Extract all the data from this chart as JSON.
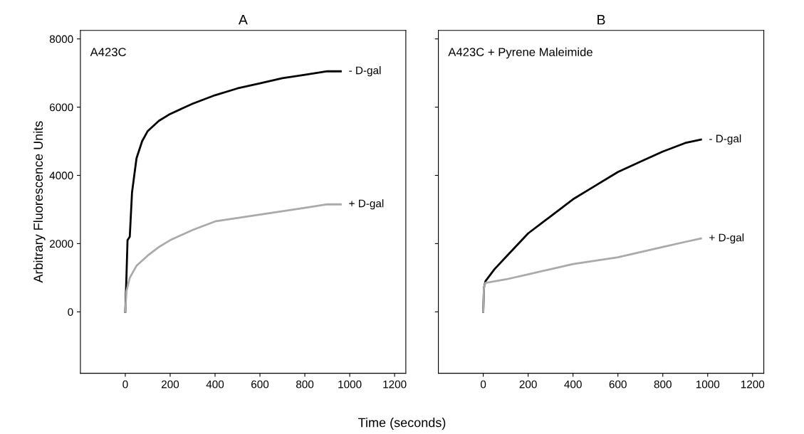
{
  "chart_data": [
    {
      "type": "line",
      "title": "A",
      "xlabel": "Time (seconds)",
      "ylabel": "Arbitrary Fluorescence Units",
      "annotations": [
        "A423C"
      ],
      "xlim": [
        -200,
        1250
      ],
      "ylim": [
        -1800,
        8250
      ],
      "xticks": [
        0,
        200,
        400,
        600,
        800,
        1000,
        1200
      ],
      "yticks": [
        0,
        2000,
        4000,
        6000,
        8000
      ],
      "series": [
        {
          "name": "- D-gal",
          "color": "#000000",
          "x": [
            0,
            5,
            10,
            20,
            30,
            50,
            75,
            100,
            150,
            200,
            300,
            400,
            500,
            600,
            700,
            800,
            900,
            960
          ],
          "values": [
            0,
            1000,
            2100,
            2200,
            3500,
            4500,
            5000,
            5300,
            5600,
            5800,
            6100,
            6350,
            6550,
            6700,
            6850,
            6950,
            7050,
            7050
          ]
        },
        {
          "name": "+ D-gal",
          "color": "#aaaaaa",
          "x": [
            0,
            5,
            20,
            50,
            100,
            150,
            200,
            300,
            400,
            500,
            600,
            700,
            800,
            900,
            960
          ],
          "values": [
            0,
            600,
            1000,
            1350,
            1650,
            1900,
            2100,
            2400,
            2650,
            2750,
            2850,
            2950,
            3050,
            3150,
            3150
          ]
        }
      ]
    },
    {
      "type": "line",
      "title": "B",
      "annotations": [
        "A423C + Pyrene Maleimide"
      ],
      "tick_labels": "x",
      "xlim": [
        -200,
        1250
      ],
      "ylim": [
        -1800,
        8250
      ],
      "xticks": [
        0,
        200,
        400,
        600,
        800,
        1000,
        1200
      ],
      "yticks": [
        0,
        2000,
        4000,
        6000,
        8000
      ],
      "series": [
        {
          "name": "- D-gal",
          "color": "#000000",
          "x": [
            0,
            3,
            10,
            50,
            100,
            200,
            300,
            400,
            500,
            600,
            700,
            800,
            900,
            970
          ],
          "values": [
            0,
            700,
            900,
            1250,
            1600,
            2300,
            2800,
            3300,
            3700,
            4100,
            4400,
            4700,
            4950,
            5050
          ]
        },
        {
          "name": "+ D-gal",
          "color": "#aaaaaa",
          "x": [
            0,
            3,
            10,
            100,
            200,
            300,
            400,
            500,
            600,
            700,
            800,
            900,
            970
          ],
          "values": [
            0,
            700,
            850,
            950,
            1100,
            1250,
            1400,
            1500,
            1600,
            1750,
            1900,
            2050,
            2150
          ]
        }
      ]
    }
  ]
}
